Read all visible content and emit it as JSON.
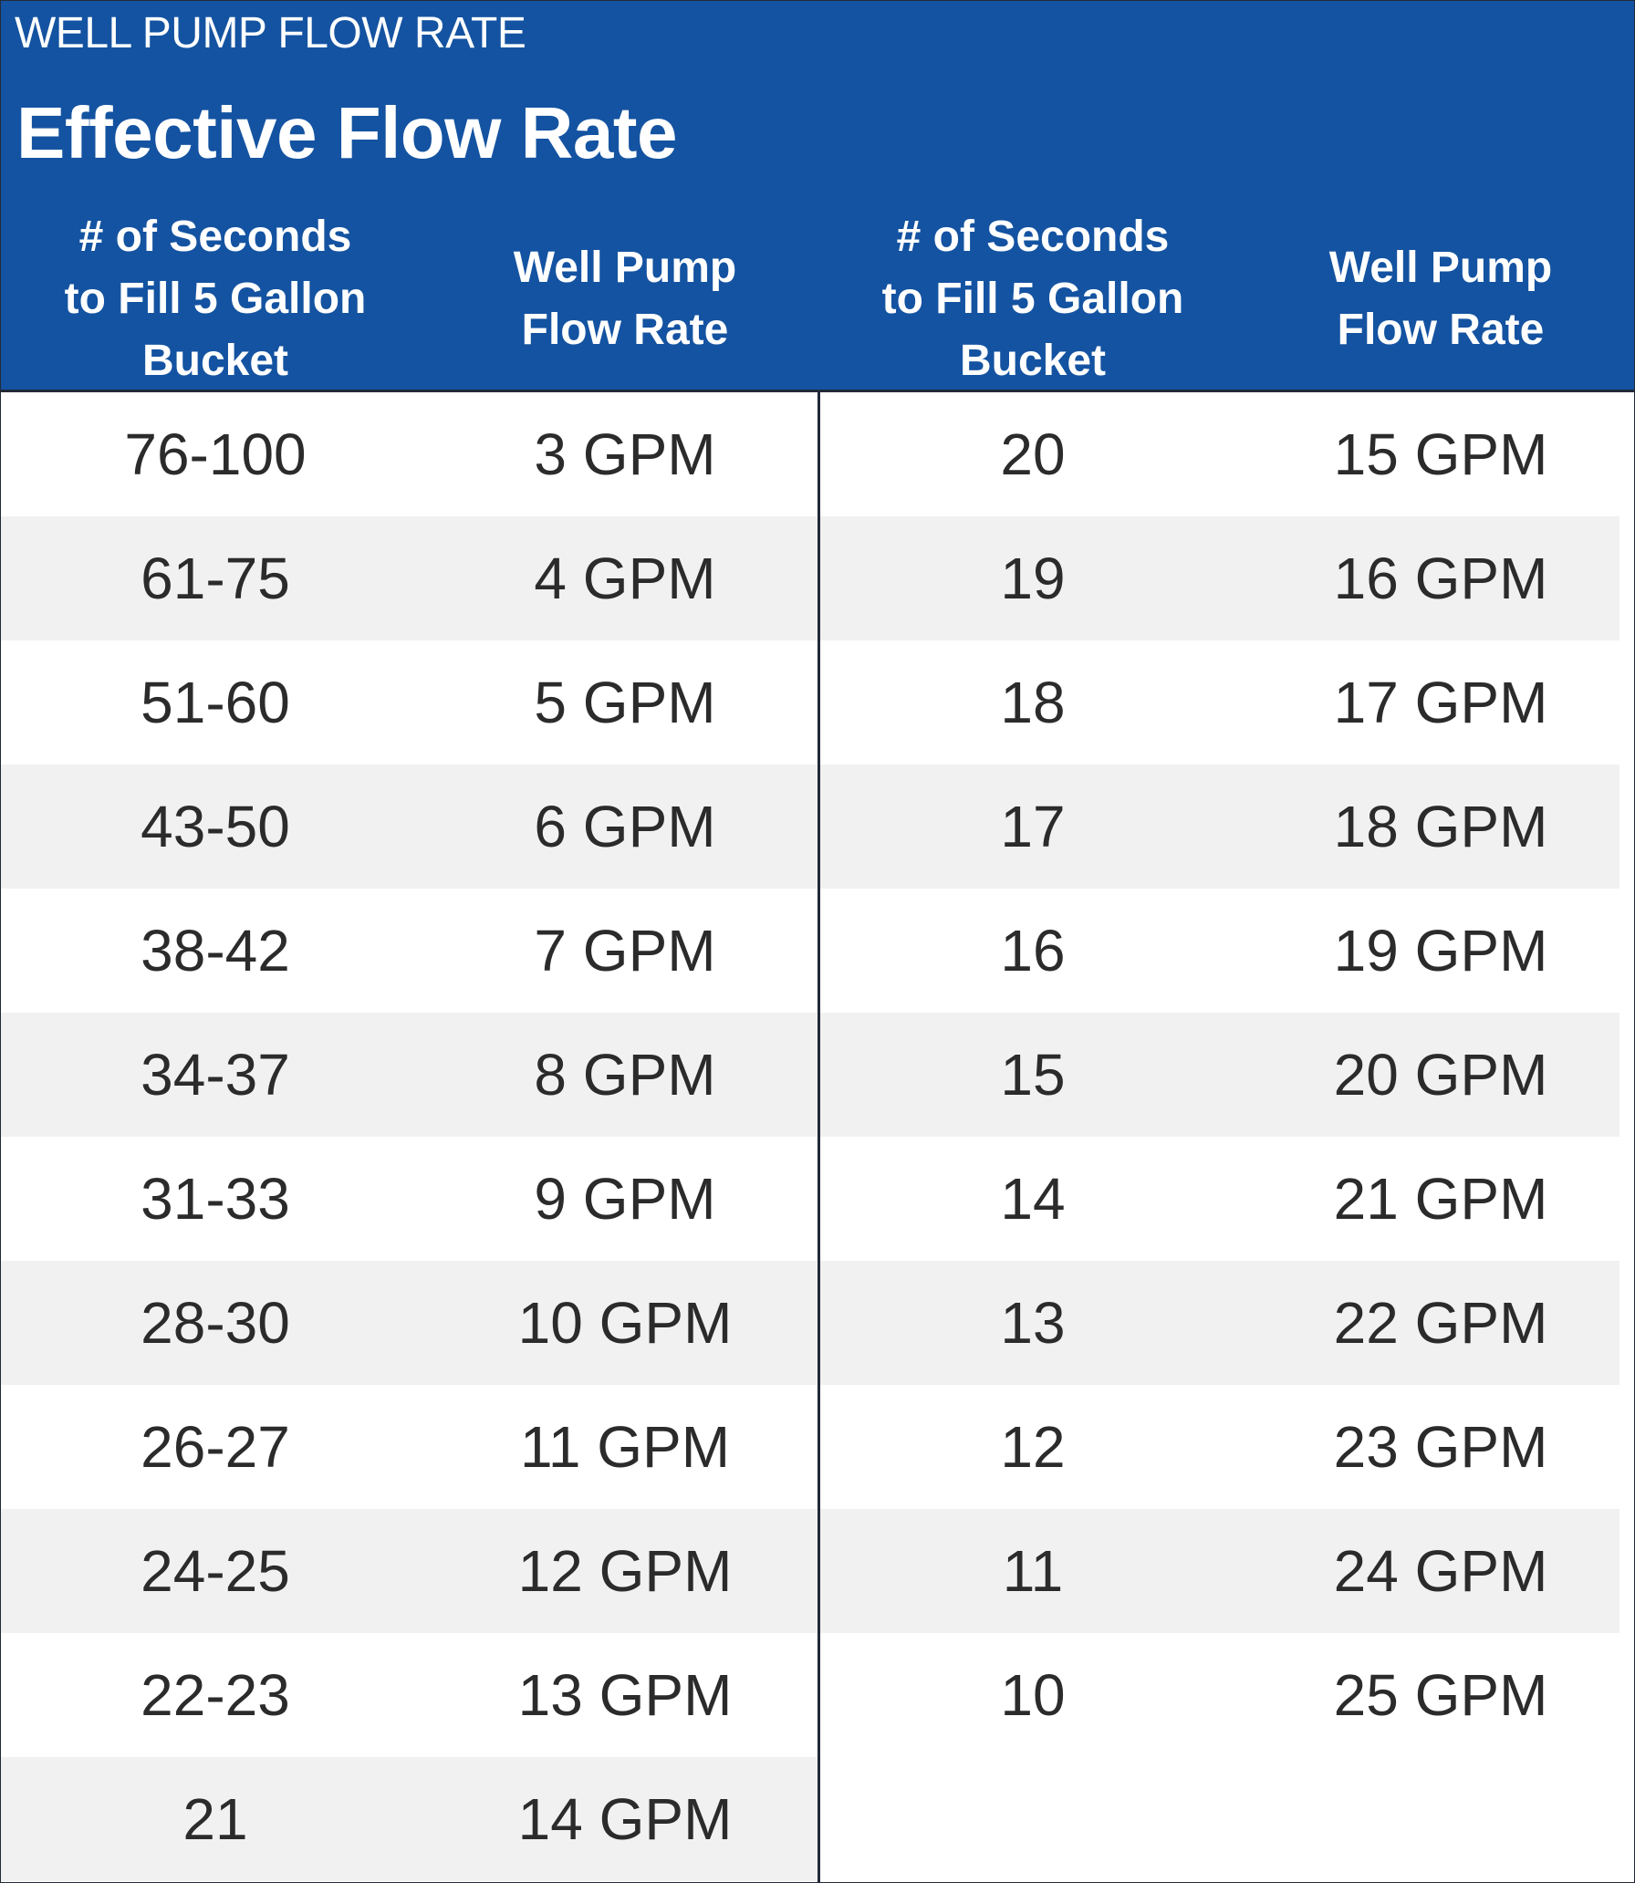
{
  "header": {
    "kicker": "WELL PUMP FLOW RATE",
    "title": "Effective Flow Rate",
    "background_color": "#1453a1"
  },
  "columns": [
    "# of Seconds\nto Fill 5 Gallon\nBucket",
    "Well Pump\nFlow Rate",
    "# of Seconds\nto Fill 5 Gallon\nBucket",
    "Well Pump\nFlow Rate"
  ],
  "left_table": [
    {
      "seconds": "76-100",
      "rate": "3 GPM"
    },
    {
      "seconds": "61-75",
      "rate": "4 GPM"
    },
    {
      "seconds": "51-60",
      "rate": "5 GPM"
    },
    {
      "seconds": "43-50",
      "rate": "6 GPM"
    },
    {
      "seconds": "38-42",
      "rate": "7 GPM"
    },
    {
      "seconds": "34-37",
      "rate": "8 GPM"
    },
    {
      "seconds": "31-33",
      "rate": "9 GPM"
    },
    {
      "seconds": "28-30",
      "rate": "10 GPM"
    },
    {
      "seconds": "26-27",
      "rate": "11 GPM"
    },
    {
      "seconds": "24-25",
      "rate": "12 GPM"
    },
    {
      "seconds": "22-23",
      "rate": "13 GPM"
    },
    {
      "seconds": "21",
      "rate": "14 GPM"
    }
  ],
  "right_table": [
    {
      "seconds": "20",
      "rate": "15 GPM"
    },
    {
      "seconds": "19",
      "rate": "16 GPM"
    },
    {
      "seconds": "18",
      "rate": "17 GPM"
    },
    {
      "seconds": "17",
      "rate": "18 GPM"
    },
    {
      "seconds": "16",
      "rate": "19 GPM"
    },
    {
      "seconds": "15",
      "rate": "20 GPM"
    },
    {
      "seconds": "14",
      "rate": "21 GPM"
    },
    {
      "seconds": "13",
      "rate": "22 GPM"
    },
    {
      "seconds": "12",
      "rate": "23 GPM"
    },
    {
      "seconds": "11",
      "rate": "24 GPM"
    },
    {
      "seconds": "10",
      "rate": "25 GPM"
    }
  ]
}
